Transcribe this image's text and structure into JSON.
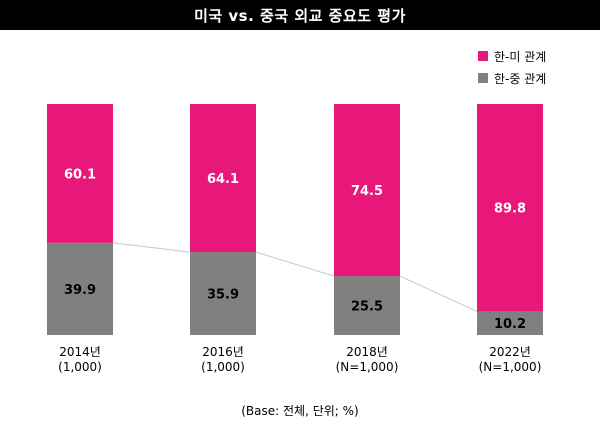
{
  "title": "미국 vs. 중국 외교 중요도 평가",
  "footnote": "(Base: 전체, 단위; %)",
  "colors": {
    "us": "#E8177A",
    "china": "#808080",
    "title_bg": "#000000"
  },
  "chart_data": {
    "type": "bar",
    "stacked": true,
    "title": "미국 vs. 중국 외교 중요도 평가",
    "categories": [
      "2014년",
      "2016년",
      "2018년",
      "2022년"
    ],
    "category_sublabels": [
      "(1,000)",
      "(1,000)",
      "(N=1,000)",
      "(N=1,000)"
    ],
    "series": [
      {
        "name": "한-미 관계",
        "values": [
          60.1,
          64.1,
          74.5,
          89.8
        ],
        "value_labels": [
          "60.1",
          "64.1",
          "74.5",
          "89.8"
        ]
      },
      {
        "name": "한-중 관계",
        "values": [
          39.9,
          35.9,
          25.5,
          10.2
        ],
        "value_labels": [
          "39.9",
          "35.9",
          "25.5",
          "10.2"
        ]
      }
    ],
    "ylim": [
      0,
      100
    ],
    "grid": false,
    "legend_position": "top-right",
    "connector_lines": true
  }
}
